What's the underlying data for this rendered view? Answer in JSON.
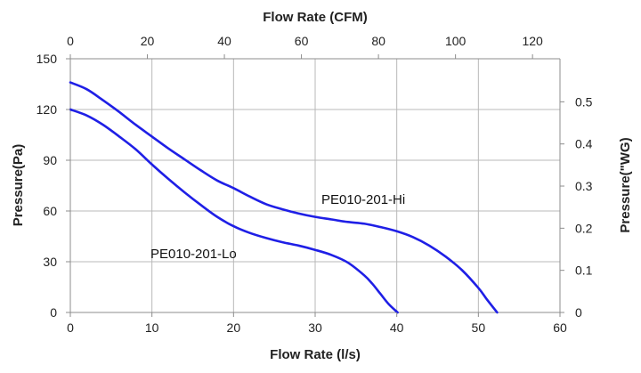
{
  "chart_data": {
    "type": "line",
    "title": "",
    "grid": true,
    "legend": "inline labels",
    "colors": {
      "series": "#1f1fe6",
      "grid": "#b8b8b8",
      "axis": "#8c8c8c",
      "text": "#222222"
    },
    "x_axis_bottom": {
      "label": "Flow Rate (l/s)",
      "range": [
        0,
        60
      ],
      "ticks": [
        0,
        10,
        20,
        30,
        40,
        50,
        60
      ]
    },
    "x_axis_top": {
      "label": "Flow Rate (CFM)",
      "range": [
        0,
        127.13
      ],
      "ticks": [
        0,
        20,
        40,
        60,
        80,
        100,
        120
      ]
    },
    "y_axis_left": {
      "label": "Pressure(Pa)",
      "range": [
        0,
        150
      ],
      "ticks": [
        0,
        30,
        60,
        90,
        120,
        150
      ]
    },
    "y_axis_right": {
      "label": "Pressure(\"WG)",
      "range": [
        0,
        0.6022
      ],
      "ticks": [
        0,
        0.1,
        0.2,
        0.3,
        0.4,
        0.5
      ]
    },
    "series": [
      {
        "name": "PE010-201-Hi",
        "x": [
          0,
          2,
          4,
          6,
          8,
          10,
          12,
          14,
          16,
          18,
          20,
          22,
          24,
          26,
          28,
          30,
          32,
          34,
          36,
          38,
          40,
          42,
          44,
          46,
          48,
          50,
          51,
          52.3
        ],
        "y": [
          136,
          132,
          125.5,
          118.5,
          111,
          104,
          97,
          90.5,
          84,
          78,
          73.5,
          68.5,
          64,
          61,
          58.5,
          56.5,
          55,
          53.5,
          52.5,
          50.5,
          48,
          44.5,
          39.5,
          33,
          25,
          14.5,
          8,
          0
        ]
      },
      {
        "name": "PE010-201-Lo",
        "x": [
          0,
          2,
          4,
          6,
          8,
          10,
          12,
          14,
          16,
          18,
          20,
          22,
          24,
          26,
          28,
          30,
          32,
          34,
          36,
          37,
          38,
          39,
          40.1
        ],
        "y": [
          120,
          116.5,
          111,
          104,
          96.5,
          87.5,
          79,
          71,
          63.5,
          56.5,
          51,
          47,
          44,
          41.5,
          39.5,
          37,
          34,
          29.5,
          22,
          17,
          11,
          5,
          0
        ]
      }
    ],
    "annotations": [
      "PE010-201-Hi",
      "PE010-201-Lo"
    ]
  }
}
